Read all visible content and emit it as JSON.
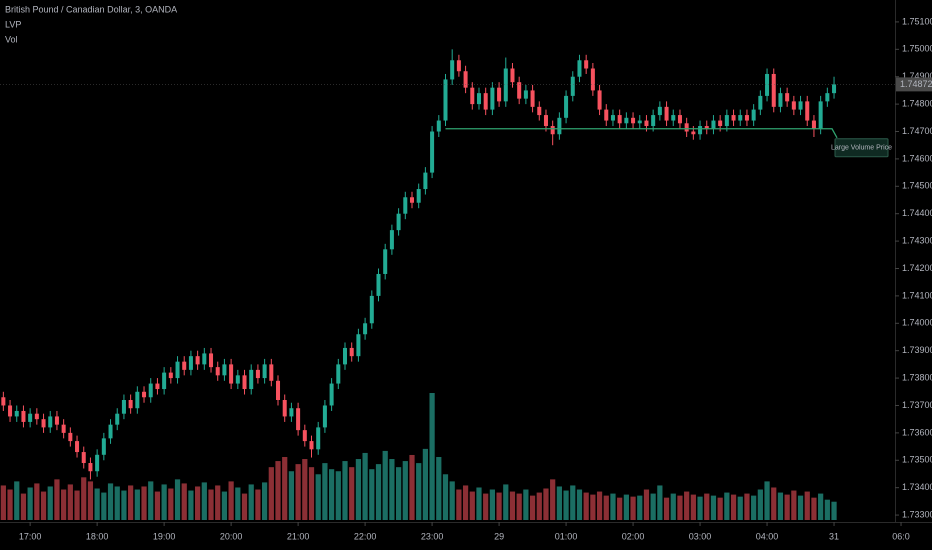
{
  "chart_data": {
    "type": "candlestick",
    "title": "British Pound / Canadian Dollar, 3, OANDA",
    "indicators": [
      "LVP",
      "Vol"
    ],
    "up_color": "#22ab94",
    "down_color": "#f7525f",
    "volume_up_color": "#1b6e63",
    "volume_down_color": "#8c2f35",
    "xlim": [
      -0.5,
      133.1
    ],
    "ylim": [
      1.73282,
      1.7518
    ],
    "xticks": [
      {
        "value": 4,
        "label": "17:00"
      },
      {
        "value": 14,
        "label": "18:00"
      },
      {
        "value": 24,
        "label": "19:00"
      },
      {
        "value": 34,
        "label": "20:00"
      },
      {
        "value": 44,
        "label": "21:00"
      },
      {
        "value": 54,
        "label": "22:00"
      },
      {
        "value": 64,
        "label": "23:00"
      },
      {
        "value": 74,
        "label": "29"
      },
      {
        "value": 84,
        "label": "01:00"
      },
      {
        "value": 94,
        "label": "02:00"
      },
      {
        "value": 104,
        "label": "03:00"
      },
      {
        "value": 114,
        "label": "04:00"
      },
      {
        "value": 124,
        "label": "31"
      },
      {
        "value": 134,
        "label": "06:0"
      }
    ],
    "yticks": [
      {
        "value": 1.733,
        "label": "1.73300"
      },
      {
        "value": 1.734,
        "label": "1.73400"
      },
      {
        "value": 1.735,
        "label": "1.73500"
      },
      {
        "value": 1.736,
        "label": "1.73600"
      },
      {
        "value": 1.737,
        "label": "1.73700"
      },
      {
        "value": 1.738,
        "label": "1.73800"
      },
      {
        "value": 1.739,
        "label": "1.73900"
      },
      {
        "value": 1.74,
        "label": "1.74000"
      },
      {
        "value": 1.741,
        "label": "1.74100"
      },
      {
        "value": 1.742,
        "label": "1.74200"
      },
      {
        "value": 1.743,
        "label": "1.74300"
      },
      {
        "value": 1.744,
        "label": "1.74400"
      },
      {
        "value": 1.745,
        "label": "1.74500"
      },
      {
        "value": 1.746,
        "label": "1.74600"
      },
      {
        "value": 1.747,
        "label": "1.74700"
      },
      {
        "value": 1.748,
        "label": "1.74800"
      },
      {
        "value": 1.749,
        "label": "1.74900"
      },
      {
        "value": 1.75,
        "label": "1.75000"
      },
      {
        "value": 1.751,
        "label": "1.75100"
      }
    ],
    "lvp": {
      "label": "Large Volume Price",
      "price": 1.7471,
      "start": 66,
      "color": "#2fa36f"
    },
    "open": [
      1.7373,
      1.737,
      1.7366,
      1.7368,
      1.7364,
      1.7367,
      1.7365,
      1.7362,
      1.7366,
      1.7363,
      1.736,
      1.7357,
      1.7353,
      1.7349,
      1.7346,
      1.7352,
      1.7358,
      1.7363,
      1.7367,
      1.7372,
      1.7369,
      1.7375,
      1.7373,
      1.7378,
      1.7376,
      1.7382,
      1.738,
      1.7386,
      1.7383,
      1.7388,
      1.7385,
      1.7389,
      1.7384,
      1.7381,
      1.7385,
      1.7378,
      1.7381,
      1.7376,
      1.7383,
      1.738,
      1.7385,
      1.7379,
      1.7372,
      1.7366,
      1.7369,
      1.7361,
      1.7357,
      1.7354,
      1.7362,
      1.737,
      1.7378,
      1.7385,
      1.7391,
      1.7388,
      1.7396,
      1.74,
      1.741,
      1.7418,
      1.7427,
      1.7434,
      1.744,
      1.7446,
      1.7444,
      1.7449,
      1.7455,
      1.747,
      1.7474,
      1.7489,
      1.7496,
      1.7492,
      1.7486,
      1.748,
      1.7484,
      1.7478,
      1.7486,
      1.7481,
      1.7493,
      1.7488,
      1.7482,
      1.7485,
      1.7479,
      1.7476,
      1.7472,
      1.7469,
      1.7475,
      1.7483,
      1.749,
      1.7496,
      1.7493,
      1.7485,
      1.7478,
      1.7474,
      1.7476,
      1.7473,
      1.7475,
      1.7473,
      1.7474,
      1.7472,
      1.7476,
      1.7479,
      1.7474,
      1.7476,
      1.7473,
      1.747,
      1.7469,
      1.7472,
      1.7471,
      1.7474,
      1.7472,
      1.7476,
      1.7474,
      1.7476,
      1.7474,
      1.7478,
      1.7483,
      1.7491,
      1.7479,
      1.7484,
      1.7481,
      1.7478,
      1.7481,
      1.7474,
      1.7471,
      1.7481,
      1.7484
    ],
    "high": [
      1.7375,
      1.7372,
      1.737,
      1.737,
      1.7369,
      1.7369,
      1.7367,
      1.7368,
      1.7368,
      1.7365,
      1.7362,
      1.7359,
      1.7355,
      1.7351,
      1.7354,
      1.736,
      1.7365,
      1.7369,
      1.7374,
      1.7374,
      1.7377,
      1.7377,
      1.738,
      1.738,
      1.7384,
      1.7384,
      1.7388,
      1.7388,
      1.739,
      1.739,
      1.7391,
      1.7391,
      1.7386,
      1.7387,
      1.7387,
      1.7383,
      1.7383,
      1.7385,
      1.7385,
      1.7387,
      1.7387,
      1.7381,
      1.7374,
      1.7371,
      1.7371,
      1.7363,
      1.7359,
      1.7364,
      1.7372,
      1.738,
      1.7387,
      1.7393,
      1.7393,
      1.7398,
      1.7402,
      1.7412,
      1.742,
      1.7429,
      1.7436,
      1.7442,
      1.7448,
      1.7448,
      1.7451,
      1.7457,
      1.7472,
      1.7476,
      1.7491,
      1.75,
      1.7498,
      1.7494,
      1.7488,
      1.7486,
      1.7486,
      1.7488,
      1.7488,
      1.7497,
      1.7495,
      1.749,
      1.7487,
      1.7487,
      1.7481,
      1.7478,
      1.7474,
      1.7477,
      1.7485,
      1.7492,
      1.7498,
      1.7498,
      1.7495,
      1.7487,
      1.748,
      1.7478,
      1.7478,
      1.7477,
      1.7477,
      1.7476,
      1.7476,
      1.7478,
      1.7481,
      1.7481,
      1.7478,
      1.7478,
      1.7475,
      1.7472,
      1.7474,
      1.7474,
      1.7476,
      1.7476,
      1.7478,
      1.7478,
      1.7478,
      1.7478,
      1.748,
      1.7485,
      1.7493,
      1.7493,
      1.7486,
      1.7486,
      1.7483,
      1.7483,
      1.7483,
      1.7476,
      1.7483,
      1.7486,
      1.749
    ],
    "low": [
      1.7368,
      1.7364,
      1.7364,
      1.7362,
      1.7362,
      1.7363,
      1.736,
      1.736,
      1.7361,
      1.7358,
      1.7355,
      1.7351,
      1.7347,
      1.7343,
      1.7344,
      1.735,
      1.7356,
      1.7361,
      1.7365,
      1.7367,
      1.7367,
      1.7371,
      1.7371,
      1.7374,
      1.7374,
      1.7378,
      1.7378,
      1.7381,
      1.7381,
      1.7383,
      1.7383,
      1.7382,
      1.7379,
      1.7379,
      1.7376,
      1.7376,
      1.7374,
      1.7374,
      1.7378,
      1.7378,
      1.7377,
      1.737,
      1.7364,
      1.7364,
      1.7359,
      1.7355,
      1.7351,
      1.7352,
      1.736,
      1.7368,
      1.7376,
      1.7383,
      1.7386,
      1.7386,
      1.7394,
      1.7398,
      1.7408,
      1.7416,
      1.7425,
      1.7432,
      1.7438,
      1.7442,
      1.7442,
      1.7447,
      1.7453,
      1.7468,
      1.7472,
      1.7487,
      1.749,
      1.7484,
      1.7478,
      1.7478,
      1.7476,
      1.7476,
      1.7479,
      1.7479,
      1.7486,
      1.748,
      1.748,
      1.7477,
      1.7474,
      1.747,
      1.7465,
      1.7467,
      1.7473,
      1.7481,
      1.7488,
      1.7491,
      1.7483,
      1.7476,
      1.7472,
      1.7472,
      1.7471,
      1.7471,
      1.7471,
      1.7471,
      1.747,
      1.747,
      1.7474,
      1.7472,
      1.7472,
      1.7471,
      1.7468,
      1.7467,
      1.7467,
      1.7469,
      1.7469,
      1.747,
      1.747,
      1.7472,
      1.7472,
      1.7472,
      1.7472,
      1.7476,
      1.7481,
      1.7477,
      1.7477,
      1.7479,
      1.7476,
      1.7476,
      1.7472,
      1.7468,
      1.7469,
      1.7479,
      1.7482
    ],
    "close": [
      1.737,
      1.7366,
      1.7368,
      1.7364,
      1.7367,
      1.7365,
      1.7362,
      1.7366,
      1.7363,
      1.736,
      1.7357,
      1.7353,
      1.7349,
      1.7346,
      1.7352,
      1.7358,
      1.7363,
      1.7367,
      1.7372,
      1.7369,
      1.7375,
      1.7373,
      1.7378,
      1.7376,
      1.7382,
      1.738,
      1.7386,
      1.7383,
      1.7388,
      1.7385,
      1.7389,
      1.7384,
      1.7381,
      1.7385,
      1.7378,
      1.7381,
      1.7376,
      1.7383,
      1.738,
      1.7385,
      1.7379,
      1.7372,
      1.7366,
      1.7369,
      1.7361,
      1.7357,
      1.7354,
      1.7362,
      1.737,
      1.7378,
      1.7385,
      1.7391,
      1.7388,
      1.7396,
      1.74,
      1.741,
      1.7418,
      1.7427,
      1.7434,
      1.744,
      1.7446,
      1.7444,
      1.7449,
      1.7455,
      1.747,
      1.7474,
      1.7489,
      1.7496,
      1.7492,
      1.7486,
      1.748,
      1.7484,
      1.7478,
      1.7486,
      1.7481,
      1.7493,
      1.7488,
      1.7482,
      1.7485,
      1.7479,
      1.7476,
      1.7472,
      1.7469,
      1.7475,
      1.7483,
      1.749,
      1.7496,
      1.7493,
      1.7485,
      1.7478,
      1.7474,
      1.7476,
      1.7473,
      1.7475,
      1.7473,
      1.7474,
      1.7472,
      1.7476,
      1.7479,
      1.7474,
      1.7476,
      1.7473,
      1.747,
      1.7469,
      1.7472,
      1.7471,
      1.7474,
      1.7472,
      1.7476,
      1.7474,
      1.7476,
      1.7474,
      1.7478,
      1.7483,
      1.7491,
      1.7479,
      1.7484,
      1.7481,
      1.7478,
      1.7481,
      1.7474,
      1.7471,
      1.7481,
      1.7484,
      1.74872
    ],
    "volume": [
      34,
      30,
      38,
      26,
      32,
      36,
      28,
      33,
      40,
      30,
      35,
      29,
      42,
      38,
      31,
      27,
      36,
      33,
      29,
      34,
      30,
      33,
      38,
      28,
      35,
      31,
      40,
      36,
      29,
      33,
      37,
      30,
      34,
      28,
      38,
      32,
      26,
      35,
      30,
      37,
      52,
      58,
      62,
      48,
      55,
      60,
      52,
      45,
      56,
      50,
      48,
      58,
      52,
      60,
      66,
      50,
      55,
      68,
      60,
      52,
      58,
      64,
      56,
      70,
      125,
      62,
      45,
      38,
      30,
      34,
      28,
      32,
      26,
      30,
      27,
      35,
      28,
      26,
      30,
      24,
      27,
      31,
      40,
      33,
      29,
      34,
      30,
      27,
      25,
      28,
      24,
      26,
      22,
      25,
      23,
      24,
      30,
      26,
      34,
      22,
      26,
      24,
      28,
      25,
      23,
      26,
      24,
      22,
      27,
      25,
      23,
      26,
      24,
      30,
      38,
      32,
      27,
      25,
      29,
      24,
      28,
      22,
      26,
      20,
      18
    ]
  }
}
